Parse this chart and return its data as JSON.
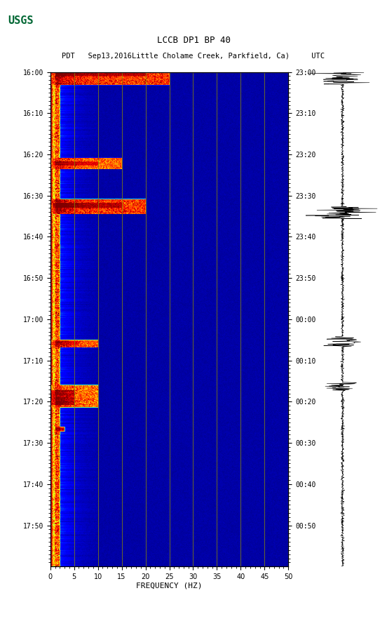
{
  "title_line1": "LCCB DP1 BP 40",
  "title_line2": "PDT   Sep13,2016Little Cholame Creek, Parkfield, Ca)     UTC",
  "xlabel": "FREQUENCY (HZ)",
  "ylabel_left": [
    "16:00",
    "16:10",
    "16:20",
    "16:30",
    "16:40",
    "16:50",
    "17:00",
    "17:10",
    "17:20",
    "17:30",
    "17:40",
    "17:50"
  ],
  "ylabel_right": [
    "23:00",
    "23:10",
    "23:20",
    "23:30",
    "23:40",
    "23:50",
    "00:00",
    "00:10",
    "00:20",
    "00:30",
    "00:40",
    "00:50"
  ],
  "freq_min": 0,
  "freq_max": 50,
  "background_color": "#ffffff",
  "spectrogram_bg": "#00008B",
  "fig_width": 5.52,
  "fig_height": 8.92,
  "vgrid_freqs": [
    5,
    10,
    15,
    20,
    25,
    30,
    35,
    40,
    45
  ],
  "vgrid_color": "#8B8B00"
}
